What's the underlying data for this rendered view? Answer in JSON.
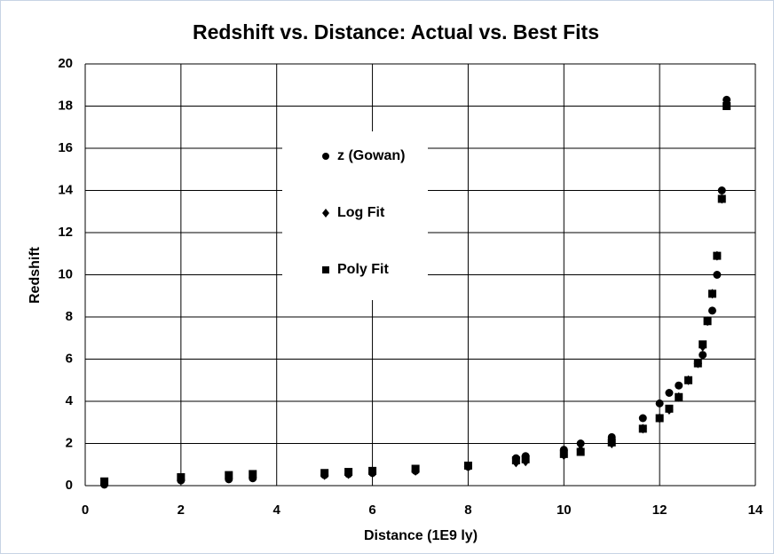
{
  "chart_data": {
    "type": "scatter",
    "title": "Redshift vs. Distance: Actual vs. Best Fits",
    "xlabel": "Distance (1E9 ly)",
    "ylabel": "Redshift",
    "xlim": [
      0,
      14
    ],
    "xticks": [
      0,
      2,
      4,
      6,
      8,
      10,
      12,
      14
    ],
    "ylim": [
      0,
      20
    ],
    "yticks": [
      0,
      2,
      4,
      6,
      8,
      10,
      12,
      14,
      16,
      18,
      20
    ],
    "grid": true,
    "legend": "center",
    "series": [
      {
        "name": "z (Gowan)",
        "color": "#000000",
        "marker": "circle",
        "x": [
          0.4,
          2,
          3,
          3.5,
          5,
          5.5,
          6,
          6.9,
          8,
          9,
          9.2,
          10,
          10.35,
          11,
          11.65,
          12,
          12.2,
          12.4,
          12.8,
          12.9,
          13.1,
          13.2,
          13.3,
          13.4
        ],
        "values": [
          0.05,
          0.25,
          0.3,
          0.35,
          0.5,
          0.55,
          0.6,
          0.7,
          0.9,
          1.3,
          1.4,
          1.7,
          2.0,
          2.3,
          3.2,
          3.9,
          4.4,
          4.75,
          5.8,
          6.2,
          8.3,
          10.0,
          14.0,
          18.3
        ]
      },
      {
        "name": "Log Fit",
        "color": "#000000",
        "marker": "diamond",
        "x": [
          0.4,
          2,
          3,
          3.5,
          5,
          5.5,
          6,
          6.9,
          8,
          9,
          9.2,
          10,
          10.35,
          11,
          11.65,
          12,
          12.2,
          12.4,
          12.6,
          12.8,
          12.9,
          13.0,
          13.1,
          13.2,
          13.3,
          13.4
        ],
        "values": [
          0.1,
          0.3,
          0.35,
          0.4,
          0.5,
          0.55,
          0.6,
          0.7,
          0.9,
          1.1,
          1.15,
          1.45,
          1.7,
          2.0,
          2.7,
          3.2,
          3.6,
          4.2,
          5.0,
          5.8,
          6.6,
          7.8,
          9.1,
          10.9,
          13.6,
          18.1
        ]
      },
      {
        "name": "Poly Fit",
        "color": "#000000",
        "marker": "square",
        "x": [
          0.4,
          2,
          3,
          3.5,
          5,
          5.5,
          6,
          6.9,
          8,
          9,
          9.2,
          10,
          10.35,
          11,
          11.65,
          12,
          12.2,
          12.4,
          12.6,
          12.8,
          12.9,
          13.0,
          13.1,
          13.2,
          13.3,
          13.4
        ],
        "values": [
          0.2,
          0.4,
          0.5,
          0.55,
          0.6,
          0.65,
          0.7,
          0.8,
          0.95,
          1.2,
          1.25,
          1.5,
          1.6,
          2.05,
          2.7,
          3.2,
          3.65,
          4.2,
          5.0,
          5.8,
          6.7,
          7.8,
          9.1,
          10.9,
          13.6,
          18.0
        ]
      }
    ]
  }
}
